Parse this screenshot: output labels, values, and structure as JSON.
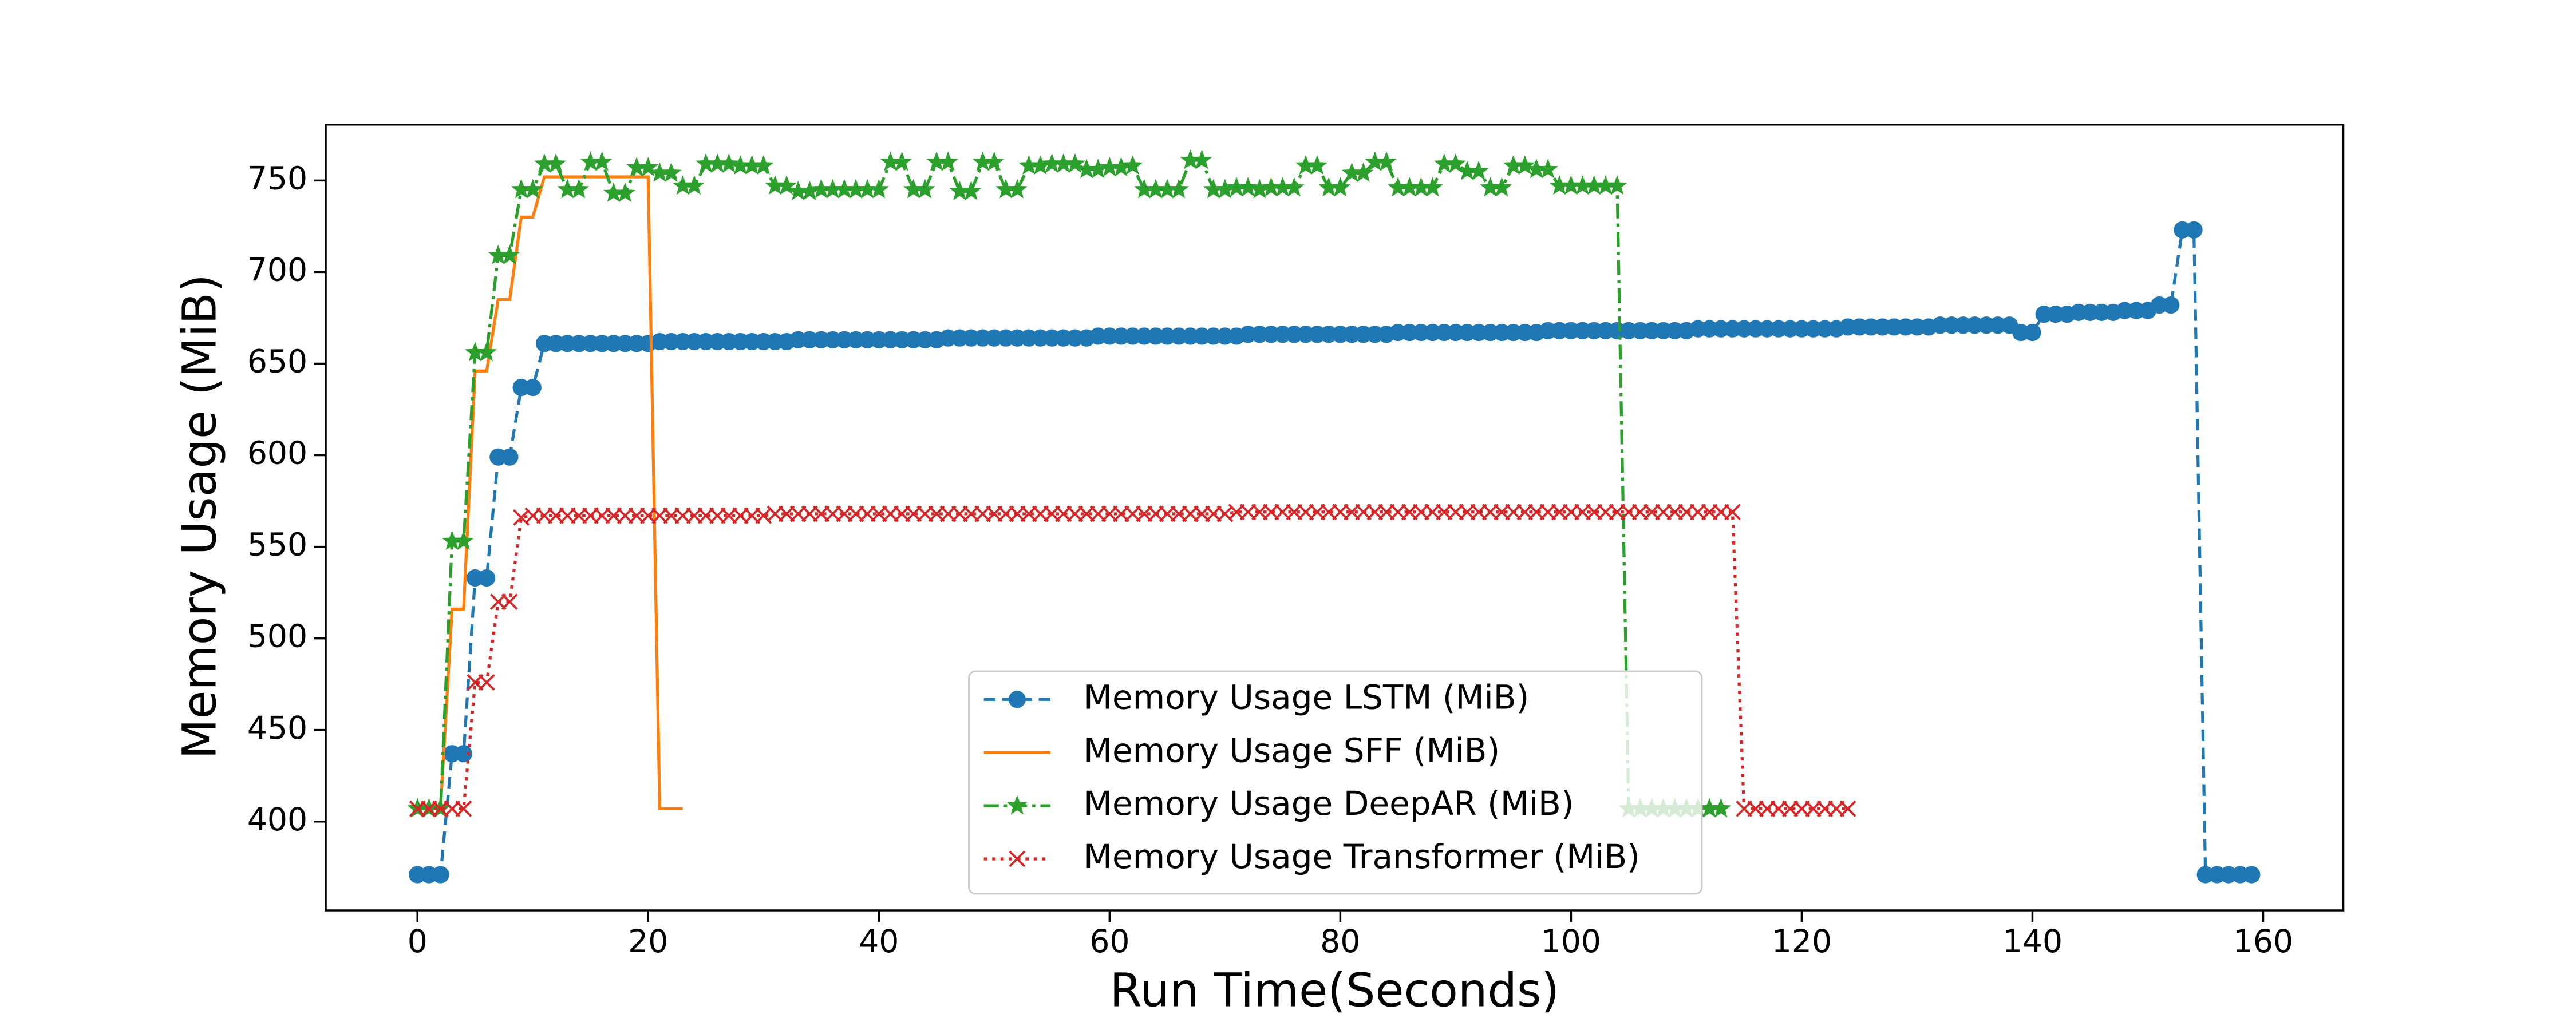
{
  "chart_data": {
    "type": "line",
    "xlabel": "Run Time(Seconds)",
    "ylabel": "Memory Usage (MiB)",
    "xlim": [
      -7.95,
      166.95
    ],
    "ylim": [
      351.5,
      780.5
    ],
    "xticks": [
      0,
      20,
      40,
      60,
      80,
      100,
      120,
      140,
      160
    ],
    "yticks": [
      400,
      450,
      500,
      550,
      600,
      650,
      700,
      750
    ],
    "grid": false,
    "legend": "lower center",
    "series": [
      {
        "name": "Memory Usage LSTM (MiB)",
        "color": "#1f77b4",
        "marker": "circle",
        "linestyle": "dashed",
        "x": [
          0,
          1,
          2,
          3,
          4,
          5,
          6,
          7,
          8,
          9,
          10,
          11,
          12,
          13,
          14,
          15,
          16,
          17,
          18,
          19,
          20,
          21,
          22,
          23,
          24,
          25,
          26,
          27,
          28,
          29,
          30,
          31,
          32,
          33,
          34,
          35,
          36,
          37,
          38,
          39,
          40,
          41,
          42,
          43,
          44,
          45,
          46,
          47,
          48,
          49,
          50,
          51,
          52,
          53,
          54,
          55,
          56,
          57,
          58,
          59,
          60,
          61,
          62,
          63,
          64,
          65,
          66,
          67,
          68,
          69,
          70,
          71,
          72,
          73,
          74,
          75,
          76,
          77,
          78,
          79,
          80,
          81,
          82,
          83,
          84,
          85,
          86,
          87,
          88,
          89,
          90,
          91,
          92,
          93,
          94,
          95,
          96,
          97,
          98,
          99,
          100,
          101,
          102,
          103,
          104,
          105,
          106,
          107,
          108,
          109,
          110,
          111,
          112,
          113,
          114,
          115,
          116,
          117,
          118,
          119,
          120,
          121,
          122,
          123,
          124,
          125,
          126,
          127,
          128,
          129,
          130,
          131,
          132,
          133,
          134,
          135,
          136,
          137,
          138,
          139,
          140,
          141,
          142,
          143,
          144,
          145,
          146,
          147,
          148,
          149,
          150,
          151,
          152,
          153,
          154,
          155,
          156,
          157,
          158,
          159
        ],
        "values": [
          371,
          371,
          371,
          437,
          437,
          533,
          533,
          599,
          599,
          637,
          637,
          661,
          661,
          661,
          661,
          661,
          661,
          661,
          661,
          661,
          661,
          662,
          662,
          662,
          662,
          662,
          662,
          662,
          662,
          662,
          662,
          662,
          662,
          663,
          663,
          663,
          663,
          663,
          663,
          663,
          663,
          663,
          663,
          663,
          663,
          663,
          664,
          664,
          664,
          664,
          664,
          664,
          664,
          664,
          664,
          664,
          664,
          664,
          664,
          665,
          665,
          665,
          665,
          665,
          665,
          665,
          665,
          665,
          665,
          665,
          665,
          665,
          666,
          666,
          666,
          666,
          666,
          666,
          666,
          666,
          666,
          666,
          666,
          666,
          666,
          667,
          667,
          667,
          667,
          667,
          667,
          667,
          667,
          667,
          667,
          667,
          667,
          667,
          668,
          668,
          668,
          668,
          668,
          668,
          668,
          668,
          668,
          668,
          668,
          668,
          668,
          669,
          669,
          669,
          669,
          669,
          669,
          669,
          669,
          669,
          669,
          669,
          669,
          669,
          670,
          670,
          670,
          670,
          670,
          670,
          670,
          670,
          671,
          671,
          671,
          671,
          671,
          671,
          671,
          667,
          667,
          677,
          677,
          677,
          678,
          678,
          678,
          678,
          679,
          679,
          679,
          682,
          682,
          723,
          723,
          371,
          371,
          371,
          371,
          371
        ]
      },
      {
        "name": "Memory Usage SFF (MiB)",
        "color": "#ff7f0e",
        "marker": "none",
        "linestyle": "solid",
        "x": [
          0,
          1,
          2,
          3,
          4,
          5,
          6,
          7,
          8,
          9,
          10,
          11,
          12,
          13,
          14,
          15,
          16,
          17,
          18,
          19,
          20,
          21,
          22,
          23
        ],
        "values": [
          407,
          407,
          407,
          516,
          516,
          646,
          646,
          685,
          685,
          730,
          730,
          752,
          752,
          752,
          752,
          752,
          752,
          752,
          752,
          752,
          752,
          407,
          407,
          407
        ]
      },
      {
        "name": "Memory Usage DeepAR (MiB)",
        "color": "#2ca02c",
        "marker": "star",
        "linestyle": "dashdot",
        "x": [
          0,
          1,
          2,
          3,
          4,
          5,
          6,
          7,
          8,
          9,
          10,
          11,
          12,
          13,
          14,
          15,
          16,
          17,
          18,
          19,
          20,
          21,
          22,
          23,
          24,
          25,
          26,
          27,
          28,
          29,
          30,
          31,
          32,
          33,
          34,
          35,
          36,
          37,
          38,
          39,
          40,
          41,
          42,
          43,
          44,
          45,
          46,
          47,
          48,
          49,
          50,
          51,
          52,
          53,
          54,
          55,
          56,
          57,
          58,
          59,
          60,
          61,
          62,
          63,
          64,
          65,
          66,
          67,
          68,
          69,
          70,
          71,
          72,
          73,
          74,
          75,
          76,
          77,
          78,
          79,
          80,
          81,
          82,
          83,
          84,
          85,
          86,
          87,
          88,
          89,
          90,
          91,
          92,
          93,
          94,
          95,
          96,
          97,
          98,
          99,
          100,
          101,
          102,
          103,
          104,
          105,
          106,
          107,
          108,
          109,
          110,
          111,
          112,
          113
        ],
        "values": [
          407,
          407,
          407,
          553,
          553,
          656,
          656,
          709,
          709,
          745,
          745,
          759,
          759,
          745,
          745,
          760,
          760,
          743,
          743,
          757,
          757,
          754,
          754,
          747,
          747,
          759,
          759,
          759,
          758,
          758,
          758,
          747,
          747,
          744,
          744,
          745,
          745,
          745,
          745,
          745,
          745,
          760,
          760,
          745,
          745,
          760,
          760,
          744,
          744,
          760,
          760,
          745,
          745,
          758,
          758,
          759,
          759,
          759,
          756,
          756,
          757,
          757,
          758,
          745,
          745,
          745,
          745,
          761,
          761,
          745,
          745,
          746,
          746,
          745,
          746,
          746,
          746,
          758,
          758,
          746,
          746,
          754,
          754,
          760,
          760,
          746,
          746,
          746,
          746,
          759,
          759,
          755,
          755,
          746,
          746,
          758,
          758,
          756,
          756,
          747,
          747,
          747,
          747,
          747,
          747,
          407,
          407,
          407,
          407,
          407,
          407,
          407,
          407,
          407
        ]
      },
      {
        "name": "Memory Usage Transformer (MiB)",
        "color": "#d62728",
        "marker": "x",
        "linestyle": "dotted",
        "x": [
          0,
          1,
          2,
          3,
          4,
          5,
          6,
          7,
          8,
          9,
          10,
          11,
          12,
          13,
          14,
          15,
          16,
          17,
          18,
          19,
          20,
          21,
          22,
          23,
          24,
          25,
          26,
          27,
          28,
          29,
          30,
          31,
          32,
          33,
          34,
          35,
          36,
          37,
          38,
          39,
          40,
          41,
          42,
          43,
          44,
          45,
          46,
          47,
          48,
          49,
          50,
          51,
          52,
          53,
          54,
          55,
          56,
          57,
          58,
          59,
          60,
          61,
          62,
          63,
          64,
          65,
          66,
          67,
          68,
          69,
          70,
          71,
          72,
          73,
          74,
          75,
          76,
          77,
          78,
          79,
          80,
          81,
          82,
          83,
          84,
          85,
          86,
          87,
          88,
          89,
          90,
          91,
          92,
          93,
          94,
          95,
          96,
          97,
          98,
          99,
          100,
          101,
          102,
          103,
          104,
          105,
          106,
          107,
          108,
          109,
          110,
          111,
          112,
          113,
          114,
          115,
          116,
          117,
          118,
          119,
          120,
          121,
          122,
          123,
          124
        ],
        "values": [
          407,
          407,
          407,
          407,
          407,
          476,
          476,
          520,
          520,
          566,
          567,
          567,
          567,
          567,
          567,
          567,
          567,
          567,
          567,
          567,
          567,
          567,
          567,
          567,
          567,
          567,
          567,
          567,
          567,
          567,
          567,
          568,
          568,
          568,
          568,
          568,
          568,
          568,
          568,
          568,
          568,
          568,
          568,
          568,
          568,
          568,
          568,
          568,
          568,
          568,
          568,
          568,
          568,
          568,
          568,
          568,
          568,
          568,
          568,
          568,
          568,
          568,
          568,
          568,
          568,
          568,
          568,
          568,
          568,
          568,
          568,
          569,
          569,
          569,
          569,
          569,
          569,
          569,
          569,
          569,
          569,
          569,
          569,
          569,
          569,
          569,
          569,
          569,
          569,
          569,
          569,
          569,
          569,
          569,
          569,
          569,
          569,
          569,
          569,
          569,
          569,
          569,
          569,
          569,
          569,
          569,
          569,
          569,
          569,
          569,
          569,
          569,
          569,
          569,
          569,
          407,
          407,
          407,
          407,
          407,
          407,
          407,
          407,
          407,
          407
        ]
      }
    ]
  }
}
